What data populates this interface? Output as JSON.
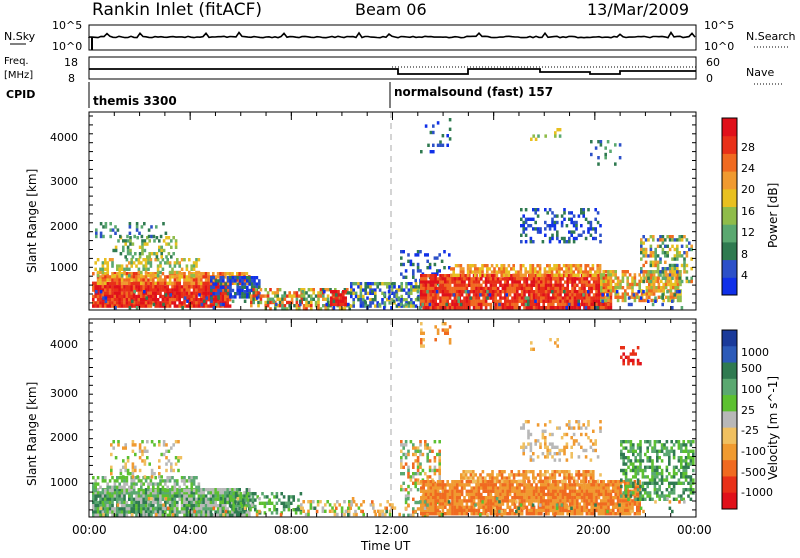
{
  "header": {
    "site": "Rankin Inlet (fitACF)",
    "beam": "Beam 06",
    "date": "13/Mar/2009"
  },
  "panels": {
    "nsky": {
      "left_label": "N.Sky",
      "right_label": "N.Search",
      "left_ticks": [
        "10^5",
        "10^0"
      ],
      "right_ticks": [
        "10^5",
        "10^0"
      ]
    },
    "freq": {
      "left_label_1": "Freq.",
      "left_label_2": "[MHz]",
      "left_ticks": [
        "18",
        "8"
      ],
      "right_ticks": [
        "60",
        "0"
      ],
      "right_label": "Nave"
    },
    "cpid": {
      "label": "CPID",
      "segments": [
        "themis 3300",
        "normalsound (fast) 157"
      ]
    }
  },
  "chart_data": [
    {
      "type": "heatmap",
      "name": "power",
      "ylabel": "Slant Range [km]",
      "xlabel": "",
      "yticks": [
        "1000",
        "2000",
        "3000",
        "4000"
      ],
      "ylim": [
        180,
        4500
      ],
      "colorbar": {
        "label": "Power [dB]",
        "ticks": [
          "4",
          "8",
          "12",
          "16",
          "20",
          "24",
          "28"
        ],
        "colors": [
          "#1030e8",
          "#2c50c8",
          "#2f7a50",
          "#5aa870",
          "#8fbc4a",
          "#e8c020",
          "#f09a30",
          "#f06a20",
          "#e83018",
          "#e0101a"
        ]
      }
    },
    {
      "type": "heatmap",
      "name": "velocity",
      "ylabel": "Slant Range [km]",
      "xlabel": "Time UT",
      "yticks": [
        "1000",
        "2000",
        "3000",
        "4000"
      ],
      "ylim": [
        180,
        4500
      ],
      "xticks": [
        "00:00",
        "04:00",
        "08:00",
        "12:00",
        "16:00",
        "20:00",
        "00:00"
      ],
      "colorbar": {
        "label": "Velocity [m s^-1]",
        "ticks": [
          "1000",
          "500",
          "100",
          "25",
          "-25",
          "-100",
          "-500",
          "-1000"
        ],
        "colors": [
          "#1a3a9a",
          "#2c5ab8",
          "#2f7a50",
          "#5aa870",
          "#5cc030",
          "#b8b8b8",
          "#f0c060",
          "#f09a30",
          "#f06a20",
          "#e83018",
          "#e0101a"
        ]
      }
    }
  ]
}
